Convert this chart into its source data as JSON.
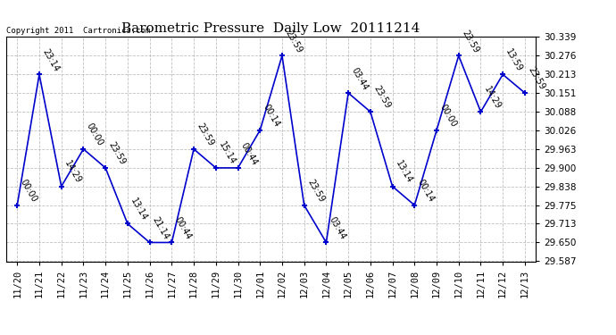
{
  "title": "Barometric Pressure  Daily Low  20111214",
  "copyright": "Copyright 2011  Cartronics.com",
  "x_labels": [
    "11/20",
    "11/21",
    "11/22",
    "11/23",
    "11/24",
    "11/25",
    "11/26",
    "11/27",
    "11/28",
    "11/29",
    "11/30",
    "12/01",
    "12/02",
    "12/03",
    "12/04",
    "12/05",
    "12/06",
    "12/07",
    "12/08",
    "12/09",
    "12/10",
    "12/11",
    "12/12",
    "12/13"
  ],
  "y_values": [
    29.775,
    30.213,
    29.838,
    29.963,
    29.9,
    29.713,
    29.65,
    29.65,
    29.963,
    29.9,
    29.9,
    30.026,
    30.276,
    29.775,
    29.65,
    30.151,
    30.088,
    29.838,
    29.775,
    30.026,
    30.276,
    30.088,
    30.213,
    30.151
  ],
  "point_labels": [
    "00:00",
    "23:14",
    "14:29",
    "00:00",
    "23:59",
    "13:14",
    "21:14",
    "00:44",
    "23:59",
    "15:14",
    "00:44",
    "00:14",
    "23:59",
    "23:59",
    "03:44",
    "03:44",
    "23:59",
    "13:14",
    "00:14",
    "00:00",
    "23:59",
    "14:29",
    "13:59",
    "23:59"
  ],
  "ylim": [
    29.587,
    30.339
  ],
  "yticks": [
    29.587,
    29.65,
    29.713,
    29.775,
    29.838,
    29.9,
    29.963,
    30.026,
    30.088,
    30.151,
    30.213,
    30.276,
    30.339
  ],
  "line_color": "#0000cc",
  "marker_color": "#0000cc",
  "bg_color": "#ffffff",
  "grid_color": "#b0b0b0",
  "title_fontsize": 11,
  "label_fontsize": 7,
  "tick_fontsize": 7.5,
  "copyright_fontsize": 6.5
}
